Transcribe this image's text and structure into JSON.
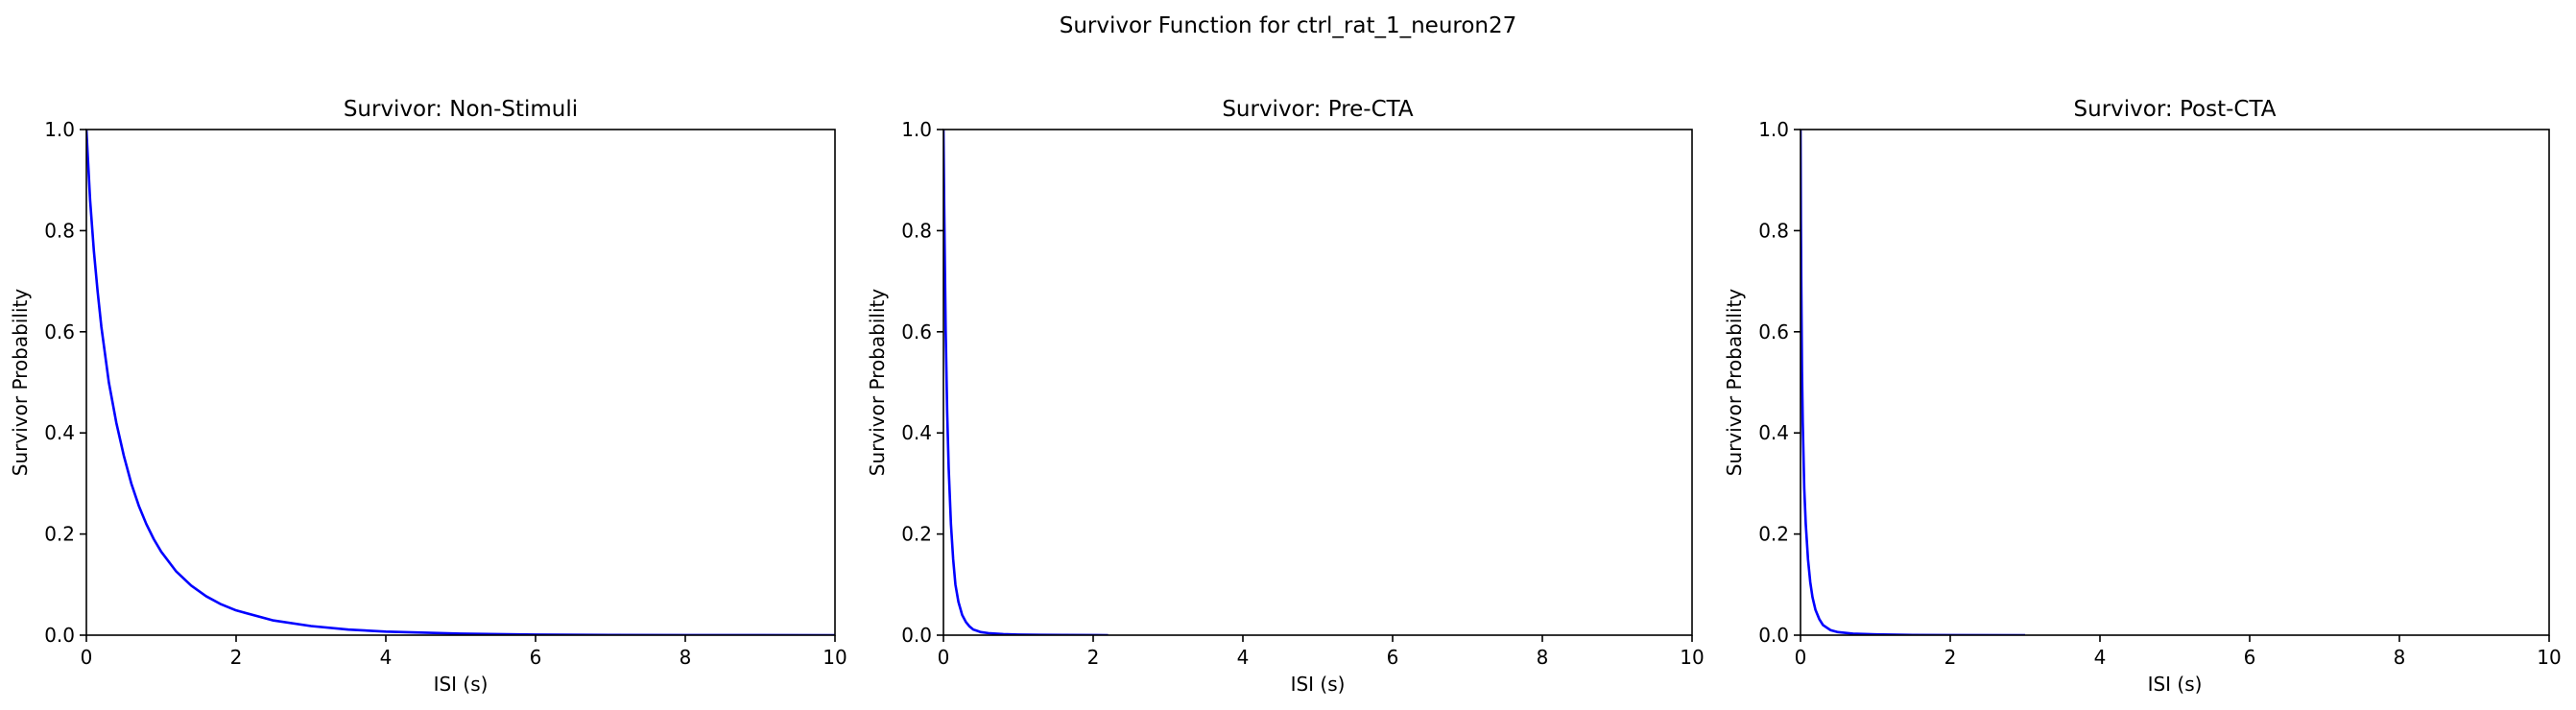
{
  "figure": {
    "suptitle": "Survivor Function for ctrl_rat_1_neuron27"
  },
  "style": {
    "line_color": "#0000ff",
    "axis_color": "#000000",
    "background": "#ffffff"
  },
  "chart_data": [
    {
      "type": "line",
      "title": "Survivor: Non-Stimuli",
      "xlabel": "ISI (s)",
      "ylabel": "Survivor Probability",
      "xlim": [
        0,
        10
      ],
      "ylim": [
        0,
        1
      ],
      "xticks": [
        "0",
        "2",
        "4",
        "6",
        "8",
        "10"
      ],
      "yticks": [
        "0.0",
        "0.2",
        "0.4",
        "0.6",
        "0.8",
        "1.0"
      ],
      "grid": false,
      "series": [
        {
          "x": [
            0,
            0.05,
            0.1,
            0.15,
            0.2,
            0.3,
            0.4,
            0.5,
            0.6,
            0.7,
            0.8,
            0.9,
            1.0,
            1.2,
            1.4,
            1.6,
            1.8,
            2.0,
            2.5,
            3.0,
            3.5,
            4.0,
            5.0,
            6.0,
            7.0,
            8.0,
            9.0,
            10.0
          ],
          "y": [
            1.0,
            0.86,
            0.76,
            0.68,
            0.61,
            0.5,
            0.42,
            0.355,
            0.3,
            0.256,
            0.22,
            0.19,
            0.165,
            0.126,
            0.098,
            0.077,
            0.061,
            0.049,
            0.029,
            0.018,
            0.011,
            0.007,
            0.003,
            0.001,
            0.0005,
            0.0002,
            0.0001,
            0.0
          ]
        }
      ]
    },
    {
      "type": "line",
      "title": "Survivor: Pre-CTA",
      "xlabel": "ISI (s)",
      "ylabel": "Survivor Probability",
      "xlim": [
        0,
        10
      ],
      "ylim": [
        0,
        1
      ],
      "xticks": [
        "0",
        "2",
        "4",
        "6",
        "8",
        "10"
      ],
      "yticks": [
        "0.0",
        "0.2",
        "0.4",
        "0.6",
        "0.8",
        "1.0"
      ],
      "grid": false,
      "series": [
        {
          "x": [
            0,
            0.01,
            0.02,
            0.03,
            0.05,
            0.07,
            0.1,
            0.13,
            0.16,
            0.2,
            0.25,
            0.3,
            0.35,
            0.4,
            0.5,
            0.6,
            0.8,
            1.0,
            1.3,
            1.6,
            2.2
          ],
          "y": [
            1.0,
            0.85,
            0.72,
            0.6,
            0.44,
            0.33,
            0.22,
            0.15,
            0.1,
            0.066,
            0.04,
            0.026,
            0.017,
            0.011,
            0.006,
            0.004,
            0.002,
            0.0012,
            0.0006,
            0.0003,
            0.0
          ]
        }
      ]
    },
    {
      "type": "line",
      "title": "Survivor: Post-CTA",
      "xlabel": "ISI (s)",
      "ylabel": "Survivor Probability",
      "xlim": [
        0,
        10
      ],
      "ylim": [
        0,
        1
      ],
      "xticks": [
        "0",
        "2",
        "4",
        "6",
        "8",
        "10"
      ],
      "yticks": [
        "0.0",
        "0.2",
        "0.4",
        "0.6",
        "0.8",
        "1.0"
      ],
      "grid": false,
      "series": [
        {
          "x": [
            0,
            0.005,
            0.01,
            0.02,
            0.03,
            0.05,
            0.07,
            0.1,
            0.13,
            0.16,
            0.2,
            0.25,
            0.3,
            0.4,
            0.5,
            0.7,
            1.0,
            1.5,
            2.0,
            3.0
          ],
          "y": [
            1.0,
            0.82,
            0.7,
            0.52,
            0.42,
            0.29,
            0.22,
            0.15,
            0.105,
            0.075,
            0.05,
            0.032,
            0.02,
            0.01,
            0.006,
            0.003,
            0.0015,
            0.0005,
            0.0002,
            0.0
          ]
        }
      ]
    }
  ]
}
